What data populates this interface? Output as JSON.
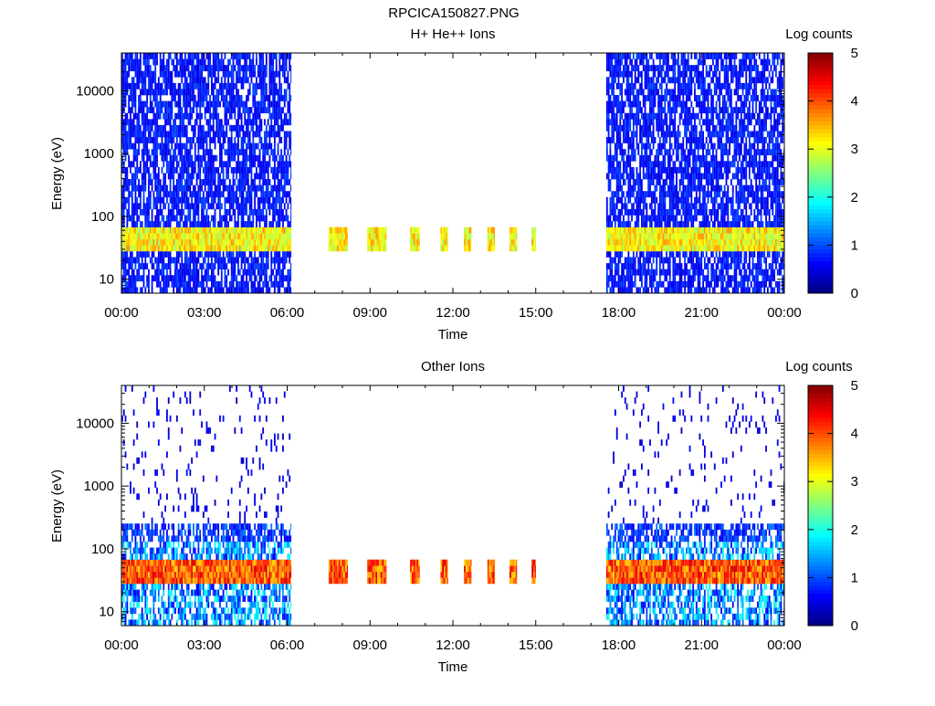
{
  "figure": {
    "title": "RPCICA150827.PNG"
  },
  "colors": {
    "colormap": [
      "#00007f",
      "#0000ff",
      "#007fff",
      "#00ffff",
      "#7fff7f",
      "#ffff00",
      "#ff7f00",
      "#ff0000",
      "#7f0000"
    ],
    "axis": "#000000",
    "background": "#ffffff"
  },
  "chart_data": [
    {
      "type": "heatmap",
      "title": "H+ He++ Ions",
      "xlabel": "Time",
      "ylabel": "Energy (eV)",
      "yscale": "log",
      "ylim": [
        6,
        40000
      ],
      "xlim": [
        0,
        24
      ],
      "x_ticks": [
        "00:00",
        "03:00",
        "06:00",
        "09:00",
        "12:00",
        "15:00",
        "18:00",
        "21:00",
        "00:00"
      ],
      "y_ticks": [
        "10",
        "100",
        "1000",
        "10000"
      ],
      "colorbar": {
        "label": "Log counts",
        "range": [
          0,
          5
        ],
        "ticks": [
          "0",
          "1",
          "2",
          "3",
          "4",
          "5"
        ]
      },
      "data_intervals": [
        [
          0,
          6.15
        ],
        [
          7.5,
          8.2
        ],
        [
          8.9,
          9.6
        ],
        [
          10.45,
          10.8
        ],
        [
          11.55,
          11.8
        ],
        [
          12.4,
          12.65
        ],
        [
          13.25,
          13.5
        ],
        [
          14.05,
          14.3
        ],
        [
          14.85,
          15.0
        ],
        [
          17.55,
          24
        ]
      ],
      "band": {
        "energy_low": 28,
        "energy_high": 65,
        "peak_log_counts": 3.5
      },
      "background_log_counts": 0.7
    },
    {
      "type": "heatmap",
      "title": "Other Ions",
      "xlabel": "Time",
      "ylabel": "Energy (eV)",
      "yscale": "log",
      "ylim": [
        6,
        40000
      ],
      "xlim": [
        0,
        24
      ],
      "x_ticks": [
        "00:00",
        "03:00",
        "06:00",
        "09:00",
        "12:00",
        "15:00",
        "18:00",
        "21:00",
        "00:00"
      ],
      "y_ticks": [
        "10",
        "100",
        "1000",
        "10000"
      ],
      "colorbar": {
        "label": "Log counts",
        "range": [
          0,
          5
        ],
        "ticks": [
          "0",
          "1",
          "2",
          "3",
          "4",
          "5"
        ]
      },
      "data_intervals": [
        [
          0,
          6.15
        ],
        [
          7.5,
          8.2
        ],
        [
          8.9,
          9.6
        ],
        [
          10.45,
          10.8
        ],
        [
          11.55,
          11.8
        ],
        [
          12.4,
          12.65
        ],
        [
          13.25,
          13.5
        ],
        [
          14.05,
          14.3
        ],
        [
          14.85,
          15.0
        ],
        [
          17.55,
          24
        ]
      ],
      "band": {
        "energy_low": 28,
        "energy_high": 65,
        "peak_log_counts": 4.4
      },
      "background_log_counts": 0.6
    }
  ]
}
